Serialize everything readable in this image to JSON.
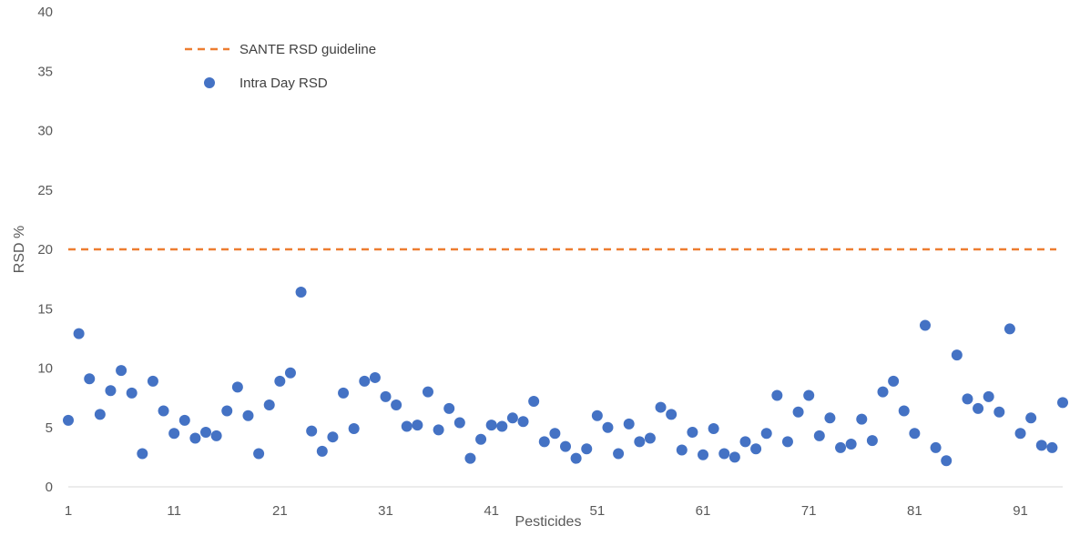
{
  "chart_data": {
    "type": "scatter",
    "title": "",
    "xlabel": "Pesticides",
    "ylabel": "RSD %",
    "xlim": [
      1,
      95
    ],
    "ylim": [
      0,
      40
    ],
    "x_ticks": [
      1,
      11,
      21,
      31,
      41,
      51,
      61,
      71,
      81,
      91
    ],
    "y_ticks": [
      0,
      5,
      10,
      15,
      20,
      25,
      30,
      35,
      40
    ],
    "grid": false,
    "legend_position": "top-left",
    "guideline": {
      "name": "SANTE RSD guideline",
      "value": 20,
      "color": "#ED7D31",
      "style": "dashed"
    },
    "series": [
      {
        "name": "Intra Day RSD",
        "color": "#4472C4",
        "values": [
          5.6,
          12.9,
          9.1,
          6.1,
          8.1,
          9.8,
          7.9,
          2.8,
          8.9,
          6.4,
          4.5,
          5.6,
          4.1,
          4.6,
          4.3,
          6.4,
          8.4,
          6.0,
          2.8,
          6.9,
          8.9,
          9.6,
          16.4,
          4.7,
          3.0,
          4.2,
          7.9,
          4.9,
          8.9,
          9.2,
          7.6,
          6.9,
          5.1,
          5.2,
          8.0,
          4.8,
          6.6,
          5.4,
          2.4,
          4.0,
          5.2,
          5.1,
          5.8,
          5.5,
          7.2,
          3.8,
          4.5,
          3.4,
          2.4,
          3.2,
          6.0,
          5.0,
          2.8,
          5.3,
          3.8,
          4.1,
          6.7,
          6.1,
          3.1,
          4.6,
          2.7,
          4.9,
          2.8,
          2.5,
          3.8,
          3.2,
          4.5,
          7.7,
          3.8,
          6.3,
          7.7,
          4.3,
          5.8,
          3.3,
          3.6,
          5.7,
          3.9,
          8.0,
          8.9,
          6.4,
          4.5,
          13.6,
          3.3,
          2.2,
          11.1,
          7.4,
          6.6,
          7.6,
          6.3,
          13.3,
          4.5,
          5.8,
          3.5,
          3.3,
          7.1
        ]
      }
    ]
  }
}
